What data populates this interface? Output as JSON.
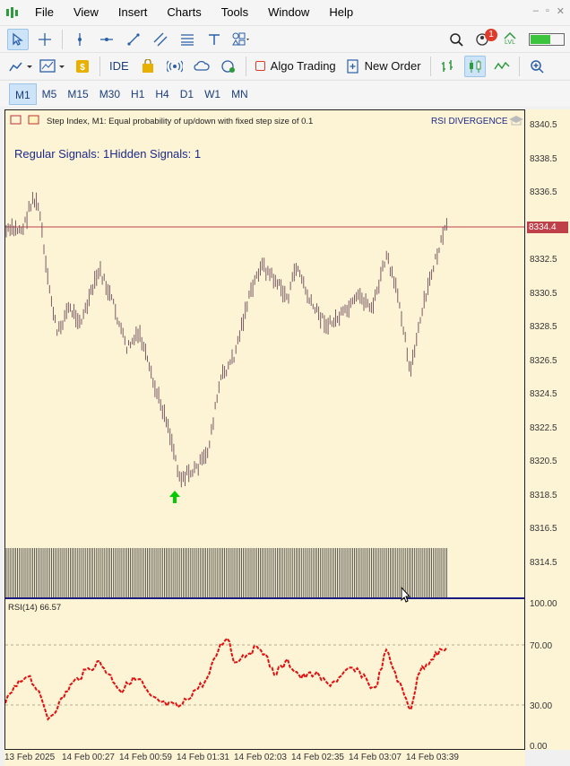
{
  "menu": [
    "File",
    "View",
    "Insert",
    "Charts",
    "Tools",
    "Window",
    "Help"
  ],
  "window_controls": [
    "–",
    "▫",
    "✕"
  ],
  "toolbar2": {
    "ide": "IDE",
    "algo_trading": "Algo Trading",
    "new_order": "New Order"
  },
  "notification_count": "1",
  "level_label": "LVL",
  "timeframes": [
    "M1",
    "M5",
    "M15",
    "M30",
    "H1",
    "H4",
    "D1",
    "W1",
    "MN"
  ],
  "active_timeframe": "M1",
  "chart": {
    "header": "Step Index, M1:  Equal probability of up/down with fixed step size of 0.1",
    "indicator_name": "RSI DIVERGENCE",
    "signals_text": "Regular Signals: 1Hidden Signals: 1",
    "current_price": "8334.4",
    "rsi_label": "RSI(14) 66.57"
  },
  "price_axis": [
    "8340.5",
    "8338.5",
    "8336.5",
    "8334.5",
    "8332.5",
    "8330.5",
    "8328.5",
    "8326.5",
    "8324.5",
    "8322.5",
    "8320.5",
    "8318.5",
    "8316.5",
    "8314.5"
  ],
  "rsi_axis": [
    "100.00",
    "70.00",
    "30.00",
    "0.00"
  ],
  "time_axis": [
    "13 Feb 2025",
    "14 Feb 00:27",
    "14 Feb 00:59",
    "14 Feb 01:31",
    "14 Feb 02:03",
    "14 Feb 02:35",
    "14 Feb 03:07",
    "14 Feb 03:39"
  ],
  "colors": {
    "bg": "#fdf4d6",
    "bars": "#6b4a5a",
    "rsi": "#e01010",
    "price_line": "#c0404a",
    "arrow": "#00cc00",
    "signal_text": "#1c2a8a"
  }
}
